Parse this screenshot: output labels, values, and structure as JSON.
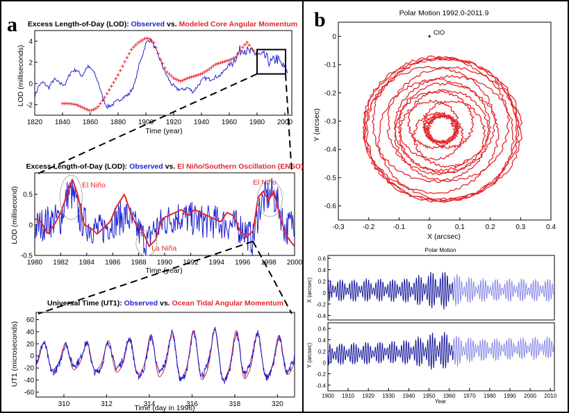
{
  "panel_labels": {
    "a": "a",
    "b": "b"
  },
  "colors": {
    "observed": "#1f1fd0",
    "model": "#e3262b",
    "dark_blue": "#1a1a9c",
    "light_blue": "#8c8ce8"
  },
  "chart_data": [
    {
      "id": "lod_core",
      "type": "line",
      "title_parts": [
        "Excess Length-of-Day (LOD): ",
        "Observed",
        " vs. ",
        "Modeled Core Angular Momentum"
      ],
      "xlabel": "Time (year)",
      "ylabel": "LOD (milliseconds)",
      "xlim": [
        1820,
        2005
      ],
      "ylim": [
        -3,
        5
      ],
      "xticks": [
        1820,
        1840,
        1860,
        1880,
        1900,
        1920,
        1940,
        1960,
        1980,
        2000
      ],
      "yticks": [
        -2,
        0,
        2,
        4
      ],
      "series": [
        {
          "name": "Observed",
          "color": "#1f1fd0",
          "x": [
            1820,
            1823,
            1826,
            1830,
            1834,
            1838,
            1842,
            1846,
            1850,
            1854,
            1858,
            1862,
            1866,
            1869,
            1872,
            1876,
            1880,
            1884,
            1888,
            1892,
            1895,
            1898,
            1900,
            1902,
            1904,
            1906,
            1910,
            1914,
            1918,
            1922,
            1926,
            1930,
            1934,
            1938,
            1942,
            1946,
            1950,
            1954,
            1958,
            1962,
            1966,
            1970,
            1974,
            1978,
            1982,
            1986,
            1990,
            1994,
            1998,
            2002
          ],
          "y": [
            -1.2,
            -0.2,
            0.1,
            -0.4,
            0.4,
            0.0,
            -0.1,
            1.1,
            1.3,
            0.7,
            1.6,
            1.2,
            0.0,
            -1.4,
            -2.2,
            -2.0,
            -1.6,
            -1.3,
            -1.0,
            0.0,
            1.7,
            2.9,
            3.8,
            4.1,
            4.0,
            3.5,
            2.3,
            1.0,
            0.0,
            -0.5,
            -0.6,
            -0.4,
            -0.8,
            -0.1,
            0.5,
            0.4,
            0.6,
            0.8,
            1.5,
            2.0,
            2.8,
            3.4,
            2.9,
            2.9,
            2.6,
            2.5,
            1.9,
            2.4,
            1.7,
            1.0
          ]
        },
        {
          "name": "Modeled Core Angular Momentum",
          "color": "#e3262b",
          "marker": "+",
          "x": [
            1840,
            1845,
            1850,
            1855,
            1860,
            1865,
            1870,
            1875,
            1880,
            1885,
            1890,
            1895,
            1900,
            1903,
            1906,
            1910,
            1915,
            1920,
            1925,
            1930,
            1935,
            1940,
            1945,
            1950,
            1955,
            1960,
            1965,
            1970,
            1973,
            1976,
            1980
          ],
          "y": [
            -1.9,
            -1.9,
            -2.0,
            -2.3,
            -2.6,
            -2.3,
            -1.4,
            -0.3,
            0.8,
            2.1,
            3.3,
            3.9,
            4.3,
            4.2,
            3.8,
            2.4,
            1.1,
            0.5,
            0.2,
            0.5,
            0.7,
            0.9,
            1.3,
            1.8,
            2.0,
            2.2,
            2.5,
            3.5,
            3.9,
            3.3,
            2.7
          ]
        }
      ]
    },
    {
      "id": "lod_enso",
      "type": "line",
      "title_parts": [
        "Excess Length-of-Day (LOD): ",
        "Observed",
        " vs. ",
        "El Niño/Southern Oscillation (ENSO)"
      ],
      "xlabel": "Time (year)",
      "ylabel": "LOD (millisecond)",
      "xlim": [
        1980,
        2000
      ],
      "ylim": [
        -0.5,
        0.85
      ],
      "xticks": [
        1980,
        1982,
        1984,
        1986,
        1988,
        1990,
        1992,
        1994,
        1996,
        1998,
        2000
      ],
      "yticks": [
        -0.5,
        0,
        0.5
      ],
      "annotations": [
        "El Niño",
        "La Niña",
        "El Niño"
      ],
      "series": [
        {
          "name": "El Niño/Southern Oscillation (ENSO)",
          "color": "#e3262b",
          "x": [
            1980,
            1980.5,
            1981,
            1981.5,
            1982,
            1982.5,
            1982.9,
            1983.3,
            1983.8,
            1984.3,
            1984.8,
            1985.3,
            1985.8,
            1986.3,
            1986.9,
            1987.3,
            1987.8,
            1988.3,
            1988.8,
            1989.3,
            1989.8,
            1990.3,
            1990.8,
            1991.3,
            1991.8,
            1992.3,
            1992.8,
            1993.3,
            1993.8,
            1994.3,
            1994.8,
            1995.3,
            1995.8,
            1996.3,
            1996.8,
            1997.2,
            1997.6,
            1998.0,
            1998.4,
            1998.8,
            1999.3,
            1999.8,
            2000
          ],
          "y": [
            0.1,
            0.05,
            -0.15,
            0.0,
            0.2,
            0.5,
            0.75,
            0.5,
            0.0,
            -0.05,
            -0.15,
            -0.05,
            0.05,
            0.3,
            0.5,
            0.25,
            0.0,
            -0.1,
            -0.35,
            -0.25,
            0.1,
            0.15,
            0.2,
            0.25,
            0.15,
            0.25,
            0.2,
            0.15,
            0.1,
            0.05,
            0.2,
            0.15,
            -0.1,
            -0.2,
            -0.1,
            0.45,
            0.55,
            0.4,
            0.55,
            0.2,
            -0.15,
            -0.3,
            -0.35
          ]
        },
        {
          "name": "Observed",
          "color": "#1f1fd0",
          "noise": true,
          "x": [
            1980,
            1981,
            1982,
            1982.6,
            1983,
            1983.5,
            1984,
            1985,
            1986,
            1987,
            1988,
            1988.7,
            1989,
            1990,
            1991,
            1992,
            1993,
            1994,
            1995,
            1996,
            1996.8,
            1997.3,
            1997.8,
            1998.3,
            1998.8,
            1999.3,
            1999.8,
            2000
          ],
          "y": [
            -0.05,
            0.05,
            0.1,
            0.55,
            0.45,
            0.1,
            0.0,
            -0.1,
            0.05,
            0.15,
            -0.1,
            -0.3,
            -0.1,
            0.05,
            0.15,
            0.1,
            0.05,
            0.05,
            0.0,
            -0.05,
            -0.25,
            0.3,
            0.45,
            0.5,
            0.3,
            -0.1,
            0.05,
            0.1
          ]
        }
      ]
    },
    {
      "id": "ut1_tidal",
      "type": "line",
      "title_parts": [
        "Universal Time (UT1): ",
        "Observed",
        " vs. ",
        "Ocean Tidal Angular Momentum"
      ],
      "xlabel": "Time (day in 1996)",
      "ylabel": "UT1 (microseconds)",
      "xlim": [
        308.7,
        320.8
      ],
      "ylim": [
        -68,
        72
      ],
      "xticks": [
        310,
        312,
        314,
        316,
        318,
        320
      ],
      "yticks": [
        -60,
        -40,
        -20,
        0,
        20,
        40,
        60
      ],
      "series": [
        {
          "name": "Ocean Tidal Angular Momentum",
          "color": "#e3262b",
          "diurnal_amp_env": true
        },
        {
          "name": "Observed",
          "color": "#1f1fd0",
          "gappy": true
        }
      ]
    },
    {
      "id": "polar_xy",
      "type": "line",
      "title": "Polar Motion 1992.0-2011.9",
      "xlabel": "X (arcsec)",
      "ylabel": "Y (arcsec)",
      "xlim": [
        -0.3,
        0.4
      ],
      "ylim": [
        -0.65,
        0.05
      ],
      "xticks": [
        -0.3,
        -0.2,
        -0.1,
        0,
        0.1,
        0.2,
        0.3,
        0.4
      ],
      "yticks": [
        0,
        -0.1,
        -0.2,
        -0.3,
        -0.4,
        -0.5,
        -0.6
      ],
      "point_label": "CIO",
      "point": [
        0,
        0
      ],
      "series": [
        {
          "name": "Polar Motion",
          "color": "#e3262b",
          "center": [
            0.04,
            -0.33
          ],
          "radius_range": [
            0.04,
            0.26
          ]
        }
      ]
    },
    {
      "id": "polar_ts",
      "type": "line",
      "title": "Polar Motion",
      "xlabel": "Year",
      "xlim": [
        1900,
        2012
      ],
      "xticks": [
        1900,
        1910,
        1920,
        1930,
        1940,
        1950,
        1960,
        1970,
        1980,
        1990,
        2000,
        2010
      ],
      "subplots": [
        {
          "ylabel": "X (arcsec)",
          "ylim": [
            -0.48,
            0.65
          ],
          "yticks": [
            -0.4,
            -0.2,
            0,
            0.2,
            0.4,
            0.6
          ]
        },
        {
          "ylabel": "Y (arcsec)",
          "ylim": [
            -0.5,
            0.7
          ],
          "yticks": [
            -0.4,
            -0.2,
            0,
            0.2,
            0.4,
            0.6
          ]
        }
      ]
    }
  ]
}
